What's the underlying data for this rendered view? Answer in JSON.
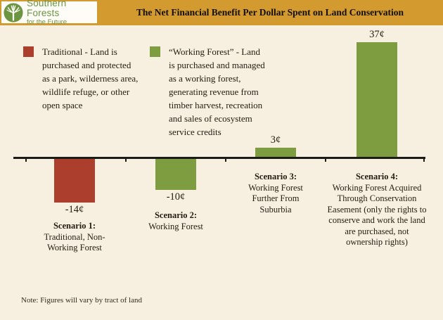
{
  "header": {
    "logo": {
      "line1": "Southern Forests",
      "line2": "for the Future"
    },
    "title": "The Net Financial Benefit Per Dollar Spent on Land Conservation"
  },
  "legend": [
    {
      "label": "Traditional - Land is purchased and protected as a park, wilderness area, wildlife refuge, or other open space",
      "color": "#ac3e2d"
    },
    {
      "label": "“Working Forest” - Land is purchased and managed as a working forest, generating revenue from timber harvest, recreation and sales of ecosystem service credits",
      "color": "#7e9d40"
    }
  ],
  "chart_data": {
    "type": "bar",
    "title": "The Net Financial Benefit Per Dollar Spent on Land Conservation",
    "categories": [
      "Scenario 1: Traditional, Non-Working Forest",
      "Scenario 2: Working Forest",
      "Scenario 3: Working Forest Further From Suburbia",
      "Scenario 4: Working Forest Acquired Through Conservation Easement (only the rights to conserve and work the land are purchased, not ownership rights)"
    ],
    "values": [
      -14,
      -10,
      3,
      37
    ],
    "value_labels": [
      "-14¢",
      "-10¢",
      "3¢",
      "37¢"
    ],
    "bar_colors": [
      "#ac3e2d",
      "#7e9d40",
      "#7e9d40",
      "#7e9d40"
    ],
    "unit": "¢",
    "baseline": 0,
    "ylim": [
      -16,
      40
    ],
    "grid": false,
    "legend_position": "top-left",
    "scenarios": [
      {
        "title": "Scenario 1:",
        "desc": "Traditional, Non-Working Forest"
      },
      {
        "title": "Scenario 2:",
        "desc": "Working Forest"
      },
      {
        "title": "Scenario 3:",
        "desc": "Working Forest Further From Suburbia"
      },
      {
        "title": "Scenario 4:",
        "desc": "Working Forest Acquired Through Conservation Easement (only the rights to conserve and work the land are purchased, not ownership rights)"
      }
    ]
  },
  "note": "Note: Figures will vary by tract of land",
  "colors": {
    "background": "#f7f0e0",
    "header_gold": "#d39a2f",
    "logo_green": "#6b9540",
    "traditional_red": "#ac3e2d",
    "working_forest_green": "#7e9d40"
  }
}
